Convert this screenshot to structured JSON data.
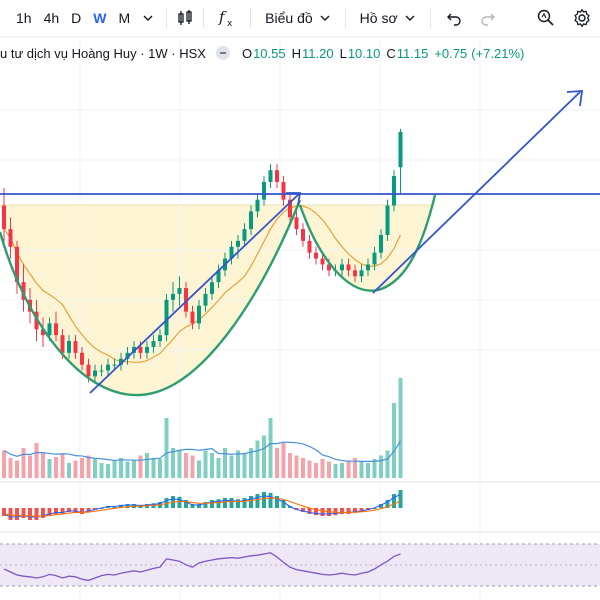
{
  "toolbar": {
    "intervals": [
      "1h",
      "4h",
      "D",
      "W",
      "M"
    ],
    "active_interval": "W",
    "chart_menu": "Biểu đồ",
    "profile_menu": "Hồ sơ"
  },
  "legend": {
    "title": "u tư dịch vụ Hoàng Huy · 1W · HSX",
    "open_label": "O",
    "open": "10.55",
    "high_label": "H",
    "high": "11.20",
    "low_label": "L",
    "low": "10.10",
    "close_label": "C",
    "close": "11.15",
    "change": "+0.75",
    "change_pct": "(+7.21%)"
  },
  "colors": {
    "up": "#089981",
    "down": "#f23645",
    "accent": "#2962ff",
    "resistance": "#3355cc",
    "cup": "#2e9e6e",
    "ma": "#e6a23c"
  },
  "chart_data": [
    {
      "type": "candlestick",
      "title": "",
      "ylim": [
        6.6,
        12.2
      ],
      "resistance": 10.55,
      "candles": [
        [
          9.9,
          10.2,
          9.2,
          9.5
        ],
        [
          9.5,
          9.7,
          9.0,
          9.2
        ],
        [
          9.2,
          9.3,
          8.4,
          8.6
        ],
        [
          8.6,
          8.9,
          8.1,
          8.3
        ],
        [
          8.3,
          8.5,
          7.9,
          8.1
        ],
        [
          8.1,
          8.3,
          7.6,
          7.8
        ],
        [
          7.8,
          8.0,
          7.5,
          7.7
        ],
        [
          7.7,
          8.0,
          7.6,
          7.9
        ],
        [
          7.9,
          8.1,
          7.6,
          7.7
        ],
        [
          7.7,
          7.8,
          7.3,
          7.4
        ],
        [
          7.4,
          7.7,
          7.3,
          7.6
        ],
        [
          7.6,
          7.7,
          7.3,
          7.4
        ],
        [
          7.4,
          7.5,
          7.1,
          7.2
        ],
        [
          7.2,
          7.3,
          6.9,
          7.0
        ],
        [
          7.0,
          7.2,
          6.9,
          7.1
        ],
        [
          7.1,
          7.2,
          7.0,
          7.1
        ],
        [
          7.1,
          7.3,
          7.0,
          7.2
        ],
        [
          7.2,
          7.3,
          7.1,
          7.2
        ],
        [
          7.2,
          7.4,
          7.1,
          7.3
        ],
        [
          7.3,
          7.5,
          7.2,
          7.4
        ],
        [
          7.4,
          7.6,
          7.3,
          7.5
        ],
        [
          7.5,
          7.6,
          7.3,
          7.4
        ],
        [
          7.4,
          7.6,
          7.3,
          7.5
        ],
        [
          7.5,
          7.7,
          7.4,
          7.6
        ],
        [
          7.6,
          7.8,
          7.5,
          7.7
        ],
        [
          7.7,
          8.4,
          7.6,
          8.3
        ],
        [
          8.3,
          8.6,
          8.1,
          8.4
        ],
        [
          8.4,
          8.7,
          8.2,
          8.5
        ],
        [
          8.5,
          8.6,
          8.0,
          8.1
        ],
        [
          8.1,
          8.2,
          7.8,
          7.9
        ],
        [
          7.9,
          8.3,
          7.8,
          8.2
        ],
        [
          8.2,
          8.5,
          8.1,
          8.4
        ],
        [
          8.4,
          8.7,
          8.3,
          8.6
        ],
        [
          8.6,
          8.9,
          8.5,
          8.8
        ],
        [
          8.8,
          9.1,
          8.7,
          9.0
        ],
        [
          9.0,
          9.3,
          8.9,
          9.2
        ],
        [
          9.2,
          9.4,
          9.0,
          9.3
        ],
        [
          9.3,
          9.6,
          9.2,
          9.5
        ],
        [
          9.5,
          9.9,
          9.4,
          9.8
        ],
        [
          9.8,
          10.1,
          9.7,
          10.0
        ],
        [
          10.0,
          10.4,
          9.9,
          10.3
        ],
        [
          10.3,
          10.6,
          10.2,
          10.5
        ],
        [
          10.5,
          10.6,
          10.2,
          10.3
        ],
        [
          10.3,
          10.4,
          9.9,
          10.0
        ],
        [
          10.0,
          10.1,
          9.6,
          9.7
        ],
        [
          9.7,
          9.8,
          9.4,
          9.5
        ],
        [
          9.5,
          9.6,
          9.2,
          9.3
        ],
        [
          9.3,
          9.4,
          9.0,
          9.1
        ],
        [
          9.1,
          9.2,
          8.9,
          9.0
        ],
        [
          9.0,
          9.1,
          8.8,
          8.9
        ],
        [
          8.9,
          9.0,
          8.7,
          8.8
        ],
        [
          8.8,
          8.9,
          8.7,
          8.8
        ],
        [
          8.8,
          9.0,
          8.7,
          8.9
        ],
        [
          8.9,
          9.0,
          8.7,
          8.8
        ],
        [
          8.8,
          8.9,
          8.6,
          8.7
        ],
        [
          8.7,
          8.9,
          8.6,
          8.8
        ],
        [
          8.8,
          9.0,
          8.7,
          8.9
        ],
        [
          8.9,
          9.2,
          8.8,
          9.1
        ],
        [
          9.1,
          9.5,
          9.0,
          9.4
        ],
        [
          9.4,
          10.0,
          9.3,
          9.9
        ],
        [
          9.9,
          10.5,
          9.8,
          10.4
        ],
        [
          10.55,
          11.2,
          10.1,
          11.15
        ]
      ]
    },
    {
      "type": "bar",
      "title": "",
      "values": [
        55,
        40,
        35,
        60,
        45,
        70,
        50,
        38,
        42,
        48,
        30,
        35,
        40,
        45,
        38,
        30,
        28,
        35,
        40,
        33,
        36,
        45,
        50,
        40,
        38,
        120,
        60,
        55,
        50,
        45,
        35,
        55,
        50,
        40,
        60,
        45,
        55,
        50,
        60,
        75,
        85,
        120,
        60,
        70,
        50,
        45,
        40,
        35,
        30,
        38,
        33,
        28,
        30,
        35,
        40,
        32,
        30,
        38,
        45,
        55,
        150,
        200
      ]
    },
    {
      "type": "bar",
      "title": "",
      "values": [
        -0.2,
        -0.3,
        -0.3,
        -0.25,
        -0.3,
        -0.3,
        -0.25,
        -0.2,
        -0.15,
        -0.15,
        -0.1,
        -0.1,
        -0.15,
        -0.1,
        -0.05,
        0.0,
        0.05,
        0.05,
        0.08,
        0.1,
        0.1,
        0.08,
        0.1,
        0.12,
        0.15,
        0.25,
        0.3,
        0.28,
        0.2,
        0.1,
        0.1,
        0.15,
        0.2,
        0.22,
        0.25,
        0.25,
        0.22,
        0.25,
        0.3,
        0.35,
        0.4,
        0.38,
        0.3,
        0.2,
        0.05,
        -0.05,
        -0.1,
        -0.15,
        -0.18,
        -0.2,
        -0.2,
        -0.18,
        -0.15,
        -0.15,
        -0.12,
        -0.1,
        -0.05,
        0.0,
        0.1,
        0.2,
        0.35,
        0.45
      ]
    },
    {
      "type": "line",
      "title": "",
      "ylim": [
        0,
        100
      ],
      "values": [
        45,
        40,
        35,
        33,
        32,
        30,
        32,
        36,
        34,
        30,
        33,
        32,
        28,
        26,
        30,
        34,
        36,
        35,
        38,
        40,
        42,
        40,
        43,
        46,
        48,
        62,
        60,
        58,
        52,
        48,
        55,
        58,
        60,
        62,
        63,
        64,
        63,
        65,
        67,
        68,
        70,
        72,
        65,
        56,
        48,
        44,
        42,
        40,
        38,
        36,
        35,
        36,
        38,
        36,
        35,
        38,
        40,
        45,
        52,
        58,
        66,
        70
      ]
    }
  ]
}
